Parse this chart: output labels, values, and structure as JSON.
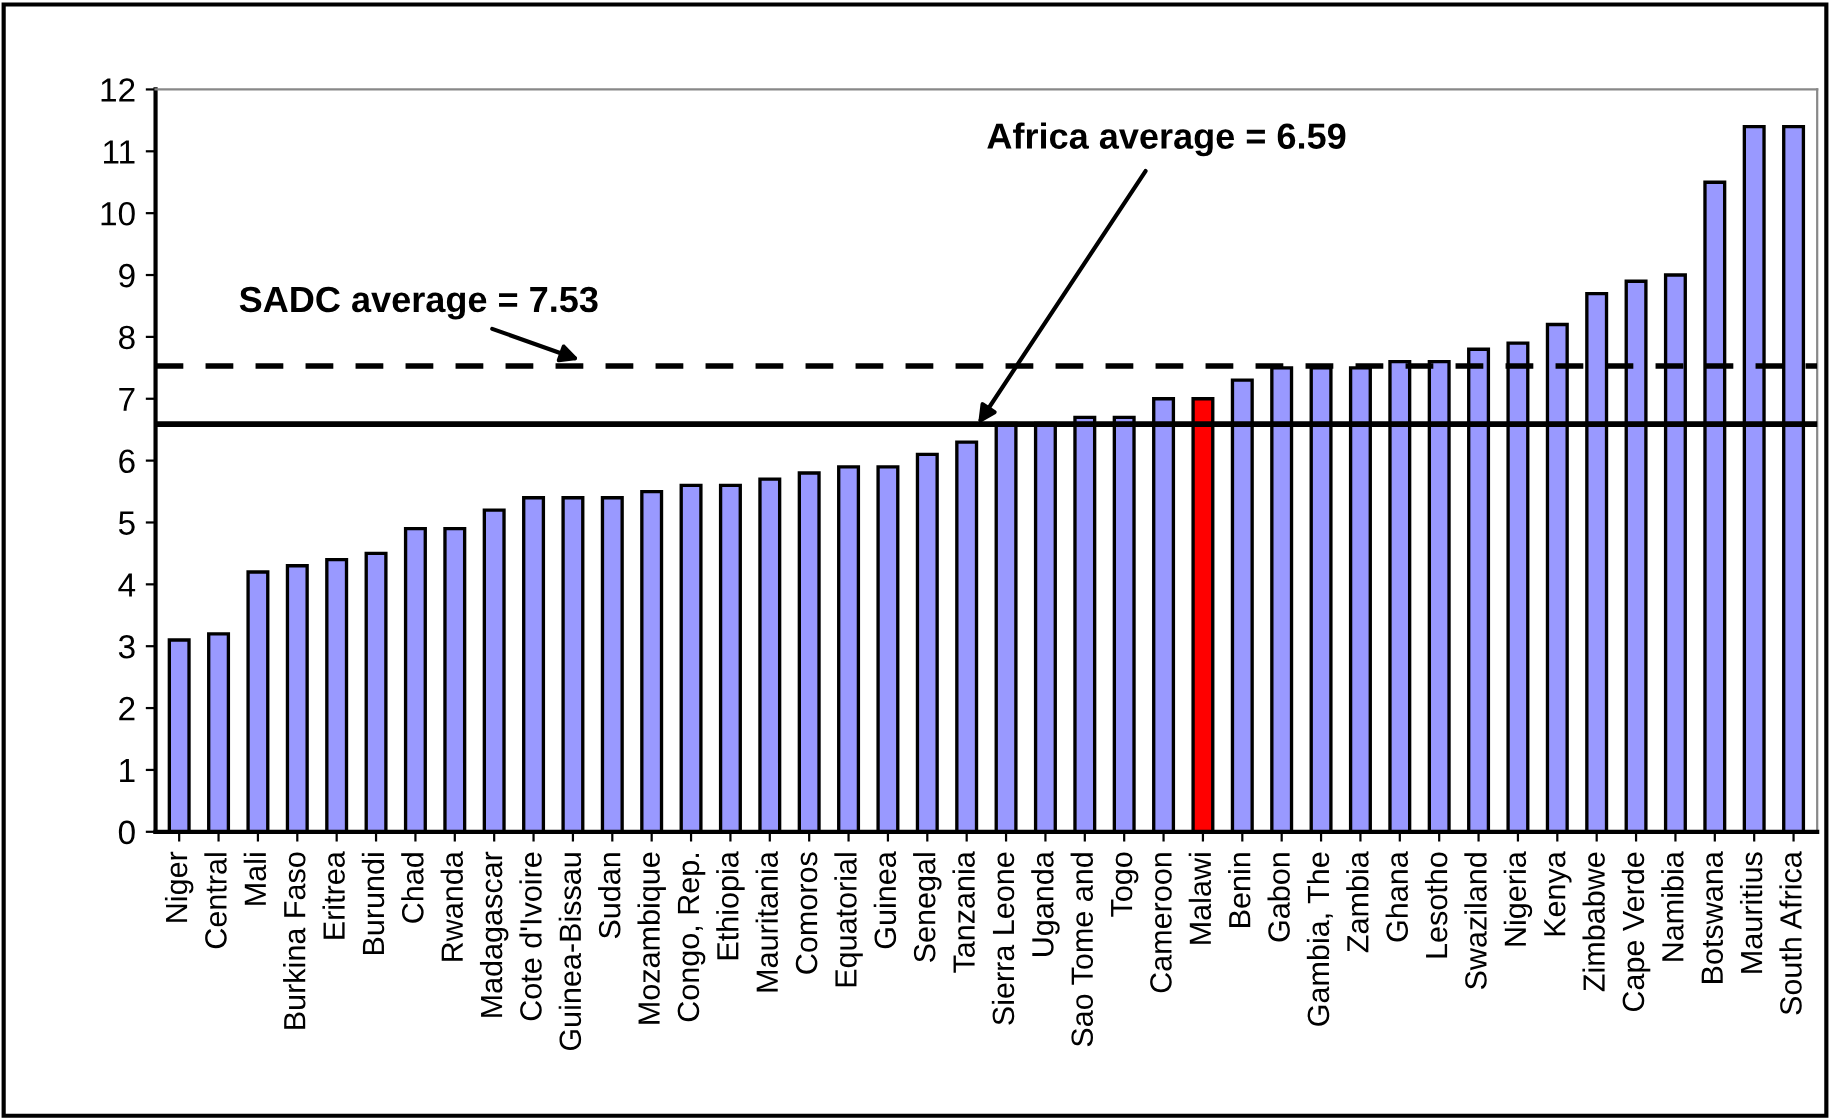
{
  "chart_data": {
    "type": "bar",
    "categories": [
      "Niger",
      "Central",
      "Mali",
      "Burkina Faso",
      "Eritrea",
      "Burundi",
      "Chad",
      "Rwanda",
      "Madagascar",
      "Cote d'Ivoire",
      "Guinea-Bissau",
      "Sudan",
      "Mozambique",
      "Congo, Rep.",
      "Ethiopia",
      "Mauritania",
      "Comoros",
      "Equatorial",
      "Guinea",
      "Senegal",
      "Tanzania",
      "Sierra Leone",
      "Uganda",
      "Sao Tome and",
      "Togo",
      "Cameroon",
      "Malawi",
      "Benin",
      "Gabon",
      "Gambia, The",
      "Zambia",
      "Ghana",
      "Lesotho",
      "Swaziland",
      "Nigeria",
      "Kenya",
      "Zimbabwe",
      "Cape Verde",
      "Namibia",
      "Botswana",
      "Mauritius",
      "South Africa"
    ],
    "values": [
      3.1,
      3.2,
      4.2,
      4.3,
      4.4,
      4.5,
      4.9,
      4.9,
      5.2,
      5.4,
      5.4,
      5.4,
      5.5,
      5.6,
      5.6,
      5.7,
      5.8,
      5.9,
      5.9,
      6.1,
      6.3,
      6.6,
      6.6,
      6.7,
      6.7,
      7.0,
      7.0,
      7.3,
      7.5,
      7.5,
      7.5,
      7.6,
      7.6,
      7.8,
      7.9,
      8.2,
      8.7,
      8.9,
      9.0,
      10.5,
      11.4,
      11.4
    ],
    "colors": [
      "#9999ff",
      "#9999ff",
      "#9999ff",
      "#9999ff",
      "#9999ff",
      "#9999ff",
      "#9999ff",
      "#9999ff",
      "#9999ff",
      "#9999ff",
      "#9999ff",
      "#9999ff",
      "#9999ff",
      "#9999ff",
      "#9999ff",
      "#9999ff",
      "#9999ff",
      "#9999ff",
      "#9999ff",
      "#9999ff",
      "#9999ff",
      "#9999ff",
      "#9999ff",
      "#9999ff",
      "#9999ff",
      "#9999ff",
      "#ff0000",
      "#9999ff",
      "#9999ff",
      "#9999ff",
      "#9999ff",
      "#9999ff",
      "#9999ff",
      "#9999ff",
      "#9999ff",
      "#9999ff",
      "#9999ff",
      "#9999ff",
      "#9999ff",
      "#9999ff",
      "#9999ff",
      "#9999ff"
    ],
    "ylim": [
      0,
      12
    ],
    "yticks": [
      0,
      1,
      2,
      3,
      4,
      5,
      6,
      7,
      8,
      9,
      10,
      11,
      12
    ],
    "grid": false,
    "legend": false,
    "ref_lines": [
      {
        "axis": "y",
        "value": 7.53,
        "label": "SADC average = 7.53",
        "line_style": "dashed",
        "color": "#000000"
      },
      {
        "axis": "y",
        "value": 6.59,
        "label": "Africa average = 6.59",
        "line_style": "solid",
        "color": "#000000"
      }
    ]
  }
}
